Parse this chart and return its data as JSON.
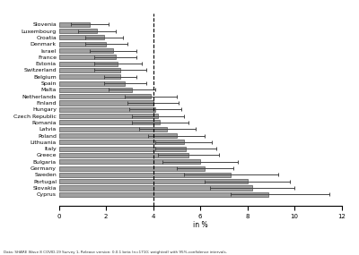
{
  "countries": [
    "Slovenia",
    "Luxembourg",
    "Croatia",
    "Denmark",
    "Israel",
    "France",
    "Estonia",
    "Switzerland",
    "Belgium",
    "Spain",
    "Malta",
    "Netherlands",
    "Finland",
    "Hungary",
    "Czech Republic",
    "Romania",
    "Latvia",
    "Poland",
    "Lithuania",
    "Italy",
    "Greece",
    "Bulgaria",
    "Germany",
    "Sweden",
    "Portugal",
    "Slovakia",
    "Cyprus"
  ],
  "values": [
    1.3,
    1.6,
    1.9,
    2.0,
    2.3,
    2.4,
    2.5,
    2.6,
    2.6,
    2.8,
    3.1,
    3.9,
    4.0,
    4.1,
    4.2,
    4.3,
    4.6,
    5.0,
    5.3,
    5.4,
    5.5,
    6.0,
    6.2,
    7.3,
    8.0,
    8.2,
    8.9
  ],
  "ci_lower": [
    0.5,
    0.8,
    1.1,
    1.1,
    1.3,
    1.5,
    1.5,
    1.5,
    1.9,
    1.9,
    2.1,
    2.8,
    2.9,
    3.0,
    3.1,
    3.1,
    3.4,
    3.8,
    4.1,
    4.1,
    4.2,
    4.4,
    5.0,
    5.3,
    6.2,
    6.4,
    7.3
  ],
  "ci_upper": [
    2.1,
    2.4,
    2.7,
    2.9,
    3.3,
    3.3,
    3.5,
    3.7,
    3.3,
    3.7,
    4.1,
    5.0,
    5.1,
    5.2,
    5.3,
    5.5,
    5.8,
    6.2,
    6.5,
    6.7,
    6.8,
    7.6,
    7.4,
    9.3,
    9.8,
    10.0,
    11.5
  ],
  "bar_color": "#a0a0a0",
  "bar_edge_color": "#555555",
  "dashed_line_x": 4.0,
  "xlabel": "in %",
  "xlim": [
    0,
    12
  ],
  "xticks": [
    0,
    2,
    4,
    6,
    8,
    10,
    12
  ],
  "caption": "Data: SHARE Wave 8 COVID-19 Survey 1, Release version: 0.0.1 beta (n=1710; weighted) with 95%-confidence intervals.",
  "background_color": "#ffffff",
  "bar_height": 0.7
}
